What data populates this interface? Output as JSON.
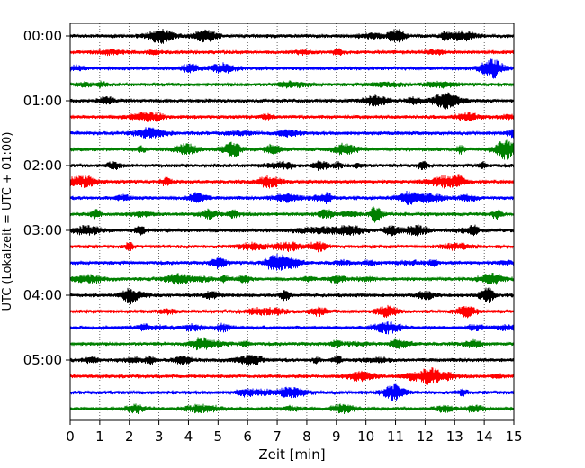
{
  "chart_data": {
    "type": "line",
    "title": "",
    "xlabel": "Zeit  [min]",
    "ylabel": "UTC (Lokalzeit = UTC + 01:00)",
    "xlim": [
      0,
      15
    ],
    "xticks": [
      0,
      1,
      2,
      3,
      4,
      5,
      6,
      7,
      8,
      9,
      10,
      11,
      12,
      13,
      14,
      15
    ],
    "xtick_labels": [
      "0",
      "1",
      "2",
      "3",
      "4",
      "5",
      "6",
      "7",
      "8",
      "9",
      "10",
      "11",
      "12",
      "13",
      "14",
      "15"
    ],
    "ytick_labels": [
      "00:00",
      "01:00",
      "02:00",
      "03:00",
      "04:00",
      "05:00"
    ],
    "grid": "vertical dotted at each minute",
    "trace_colors": [
      "#000000",
      "#ff0000",
      "#0000ff",
      "#008000"
    ],
    "rows": [
      "00:00",
      "00:15",
      "00:30",
      "00:45",
      "01:00",
      "01:15",
      "01:30",
      "01:45",
      "02:00",
      "02:15",
      "02:30",
      "02:45",
      "03:00",
      "03:15",
      "03:30",
      "03:45",
      "04:00",
      "04:15",
      "04:30",
      "04:45",
      "05:00",
      "05:15",
      "05:30",
      "05:45"
    ]
  }
}
